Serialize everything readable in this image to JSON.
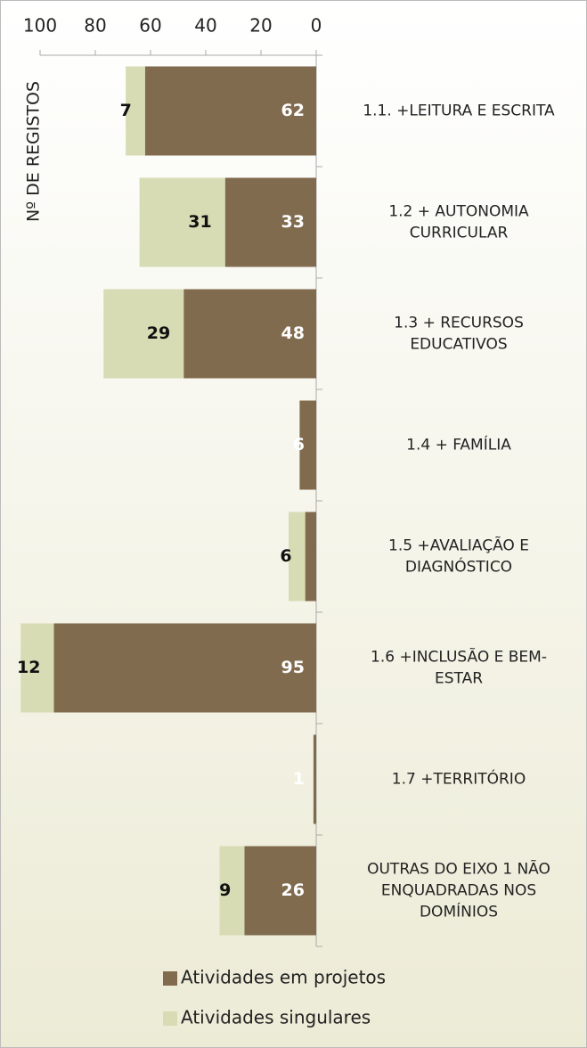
{
  "chart_data": {
    "type": "bar",
    "orientation": "horizontal",
    "stacked": true,
    "x_reversed": true,
    "y_axis_label": "Nº DE REGISTOS",
    "categories": [
      "1.1. +LEITURA E ESCRITA",
      "1.2  + AUTONOMIA\nCURRICULAR",
      "1.3 + RECURSOS\nEDUCATIVOS",
      "1.4 + FAMÍLIA",
      "1.5 +AVALIAÇÃO E\nDIAGNÓSTICO",
      "1.6 +INCLUSÃO E BEM-\nESTAR",
      "1.7 +TERRITÓRIO",
      "OUTRAS DO EIXO 1 NÃO\nENQUADRADAS NOS\nDOMÍNIOS"
    ],
    "series": [
      {
        "name": "Atividades em projetos",
        "color": "#806b4f",
        "label_color": "#ffffff",
        "values": [
          62,
          33,
          48,
          6,
          4,
          95,
          1,
          26
        ]
      },
      {
        "name": "Atividades singulares",
        "color": "#d7dcb4",
        "label_color": "#111111",
        "values": [
          7,
          31,
          29,
          null,
          6,
          12,
          null,
          9
        ]
      }
    ],
    "xlim": [
      0,
      100
    ],
    "xticks": [
      0,
      20,
      40,
      60,
      80,
      100
    ],
    "legend": "bottom"
  }
}
